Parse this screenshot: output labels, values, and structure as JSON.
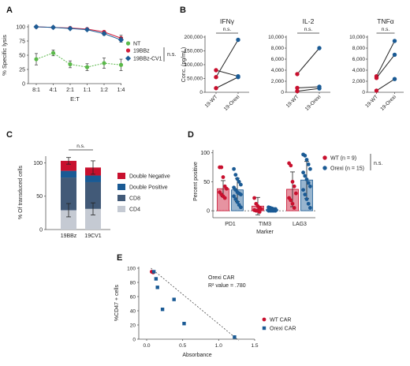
{
  "colors": {
    "nt": "#5bb94a",
    "bbz": "#d01f3c",
    "cv1": "#1d5d96",
    "red": "#c8102e",
    "blue": "#1a5a94",
    "double_negative": "#c8102e",
    "double_positive": "#1a5a94",
    "cd8": "#425a78",
    "cd4": "#c5cad3"
  },
  "panel_labels": [
    "A",
    "B",
    "C",
    "D",
    "E"
  ],
  "chart_data": [
    {
      "panel": "A",
      "type": "line",
      "ylabel": "% Specific lysis",
      "xlabel": "E:T",
      "categories": [
        "8:1",
        "4:1",
        "2:1",
        "1:1",
        "1:2",
        "1:4"
      ],
      "yticks": [
        0,
        25,
        50,
        75,
        100
      ],
      "ylim": [
        0,
        100
      ],
      "series": [
        {
          "name": "NT",
          "values": [
            43,
            54,
            34,
            29,
            36,
            33
          ],
          "errors": [
            10,
            5,
            6,
            6,
            9,
            10
          ]
        },
        {
          "name": "19BBz",
          "values": [
            100,
            99,
            98,
            96,
            91,
            80
          ],
          "errors": [
            1,
            1,
            1,
            1,
            2,
            5
          ]
        },
        {
          "name": "19BBz-CV1",
          "values": [
            100,
            99,
            97,
            95,
            88,
            77
          ],
          "errors": [
            1,
            1,
            1,
            1,
            3,
            4
          ]
        }
      ],
      "annotation": "n.s."
    },
    {
      "panel": "B",
      "type": "scatter",
      "title": "IFNγ",
      "ylabel": "Conc. (pg/mL)",
      "yticks": [
        0,
        50000,
        100000,
        150000,
        200000
      ],
      "ylim": [
        0,
        200000
      ],
      "categories": [
        "19-WT",
        "19-Orexi"
      ],
      "pairs": [
        [
          80000,
          58000
        ],
        [
          55000,
          190000
        ],
        [
          15000,
          55000
        ]
      ],
      "annotation": "n.s."
    },
    {
      "panel": "B",
      "type": "scatter",
      "title": "IL-2",
      "yticks": [
        0,
        2000,
        4000,
        6000,
        8000,
        10000
      ],
      "ylim": [
        0,
        10000
      ],
      "categories": [
        "19-WT",
        "19-Orexi"
      ],
      "pairs": [
        [
          3300,
          8000
        ],
        [
          800,
          1000
        ],
        [
          200,
          700
        ]
      ],
      "annotation": "n.s."
    },
    {
      "panel": "B",
      "type": "scatter",
      "title": "TNFα",
      "yticks": [
        0,
        2000,
        4000,
        6000,
        8000,
        10000
      ],
      "ylim": [
        0,
        10000
      ],
      "categories": [
        "19-WT",
        "19-Orexi"
      ],
      "pairs": [
        [
          2900,
          9300
        ],
        [
          2600,
          6800
        ],
        [
          300,
          2400
        ]
      ],
      "annotation": "n.s."
    },
    {
      "panel": "C",
      "type": "bar",
      "ylabel": "% Of transduced cells",
      "categories": [
        "19BBz",
        "19CV1"
      ],
      "yticks": [
        0,
        50,
        100
      ],
      "ylim": [
        0,
        110
      ],
      "series": [
        {
          "name": "CD4",
          "values": [
            29,
            31
          ],
          "errors": [
            10,
            9
          ]
        },
        {
          "name": "CD8",
          "values": [
            49,
            40
          ],
          "errors": [
            0,
            0
          ]
        },
        {
          "name": "Double Positive",
          "values": [
            10,
            10
          ],
          "errors": [
            0,
            0
          ]
        },
        {
          "name": "Double Negative",
          "values": [
            15,
            12
          ],
          "errors": [
            5,
            10
          ]
        }
      ],
      "legend": [
        "Double Negative",
        "Double Positive",
        "CD8",
        "CD4"
      ],
      "annotation": "n.s."
    },
    {
      "panel": "D",
      "type": "bar",
      "ylabel": "Percent positive",
      "xlabel": "Marker",
      "categories": [
        "PD1",
        "TIM3",
        "LAG3"
      ],
      "yticks": [
        0,
        50,
        100
      ],
      "ylim": [
        -12,
        105
      ],
      "series": [
        {
          "name": "WT (n = 9)",
          "means": [
            38,
            8,
            37
          ],
          "sd": [
            14,
            15,
            30
          ],
          "points": [
            [
              75,
              75,
              58,
              42,
              38,
              32,
              28,
              25,
              22
            ],
            [
              22,
              12,
              8,
              5,
              3,
              1,
              0,
              0,
              -2
            ],
            [
              82,
              78,
              50,
              42,
              30,
              22,
              18,
              12,
              5
            ]
          ]
        },
        {
          "name": "Orexi (n = 15)",
          "means": [
            36,
            2,
            53
          ],
          "sd": [
            20,
            3,
            32
          ],
          "points": [
            [
              72,
              62,
              55,
              50,
              45,
              40,
              36,
              32,
              30,
              28,
              25,
              20,
              15,
              10,
              6
            ],
            [
              6,
              5,
              4,
              3,
              3,
              2,
              2,
              1,
              1,
              1,
              0,
              0,
              0,
              0,
              0
            ],
            [
              97,
              95,
              88,
              80,
              72,
              66,
              60,
              54,
              48,
              42,
              36,
              28,
              20,
              12,
              5
            ]
          ]
        }
      ],
      "annotation": "n.s."
    },
    {
      "panel": "E",
      "type": "scatter",
      "ylabel": "%CD47 + cells",
      "xlabel": "Absorbance",
      "xticks": [
        0.0,
        0.5,
        1.0,
        1.5
      ],
      "yticks": [
        0,
        20,
        40,
        60,
        80,
        100
      ],
      "xlim": [
        0,
        1.5
      ],
      "ylim": [
        0,
        100
      ],
      "annotation_title": "Orexi CAR",
      "annotation_r2": "R² value = .780",
      "series": [
        {
          "name": "WT CAR",
          "x": [
            0.07,
            0.09
          ],
          "y": [
            95,
            94
          ]
        },
        {
          "name": "Orexi CAR",
          "x": [
            0.1,
            0.13,
            0.15,
            0.22,
            0.38,
            0.52,
            1.22
          ],
          "y": [
            95,
            85,
            73,
            42,
            56,
            22,
            3
          ]
        }
      ]
    }
  ]
}
